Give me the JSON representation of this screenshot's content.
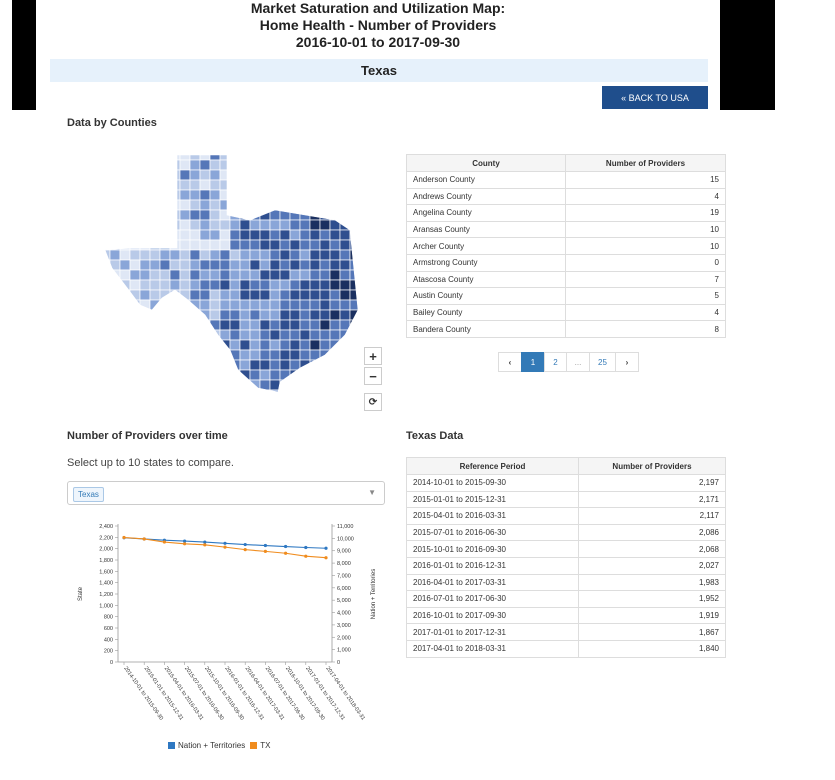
{
  "header": {
    "title_line1": "Market Saturation and Utilization Map:",
    "title_line2": "Home Health - Number of Providers",
    "title_line3": "2016-10-01 to 2017-09-30",
    "state": "Texas",
    "back_button": "« BACK TO USA"
  },
  "counties_section": {
    "title": "Data by Counties",
    "zoom_in": "+",
    "zoom_out": "−",
    "reset": "⟳",
    "table": {
      "headers": [
        "County",
        "Number of Providers"
      ],
      "rows": [
        [
          "Anderson County",
          "15"
        ],
        [
          "Andrews County",
          "4"
        ],
        [
          "Angelina County",
          "19"
        ],
        [
          "Aransas County",
          "10"
        ],
        [
          "Archer County",
          "10"
        ],
        [
          "Armstrong County",
          "0"
        ],
        [
          "Atascosa County",
          "7"
        ],
        [
          "Austin County",
          "5"
        ],
        [
          "Bailey County",
          "4"
        ],
        [
          "Bandera County",
          "8"
        ]
      ]
    },
    "pagination": {
      "prev": "‹",
      "pages": [
        "1",
        "2",
        "...",
        "25"
      ],
      "next": "›",
      "active": "1"
    }
  },
  "over_time": {
    "title": "Number of Providers over time",
    "instruction": "Select up to 10 states to compare.",
    "selected": "Texas"
  },
  "texas_data": {
    "title": "Texas Data",
    "headers": [
      "Reference Period",
      "Number of Providers"
    ],
    "rows": [
      [
        "2014-10-01 to 2015-09-30",
        "2,197"
      ],
      [
        "2015-01-01 to 2015-12-31",
        "2,171"
      ],
      [
        "2015-04-01 to 2016-03-31",
        "2,117"
      ],
      [
        "2015-07-01 to 2016-06-30",
        "2,086"
      ],
      [
        "2015-10-01 to 2016-09-30",
        "2,068"
      ],
      [
        "2016-01-01 to 2016-12-31",
        "2,027"
      ],
      [
        "2016-04-01 to 2017-03-31",
        "1,983"
      ],
      [
        "2016-07-01 to 2017-06-30",
        "1,952"
      ],
      [
        "2016-10-01 to 2017-09-30",
        "1,919"
      ],
      [
        "2017-01-01 to 2017-12-31",
        "1,867"
      ],
      [
        "2017-04-01 to 2018-03-31",
        "1,840"
      ]
    ]
  },
  "chart_data": {
    "type": "line",
    "categories": [
      "2014-10-01 to 2015-09-30",
      "2015-01-01 to 2015-12-31",
      "2015-04-01 to 2016-03-31",
      "2015-07-01 to 2016-06-30",
      "2015-10-01 to 2016-09-30",
      "2016-01-01 to 2016-12-31",
      "2016-04-01 to 2017-03-31",
      "2016-07-01 to 2017-06-30",
      "2016-10-01 to 2017-09-30",
      "2017-01-01 to 2017-12-31",
      "2017-04-01 to 2018-03-31"
    ],
    "ylabel": "State",
    "y2label": "Nation + Territories",
    "ylim": [
      0,
      2400
    ],
    "y2lim": [
      0,
      11000
    ],
    "yticks": [
      "0",
      "200",
      "400",
      "600",
      "800",
      "1,000",
      "1,200",
      "1,400",
      "1,600",
      "1,800",
      "2,000",
      "2,200",
      "2,400"
    ],
    "y2ticks": [
      "0",
      "1,000",
      "2,000",
      "3,000",
      "4,000",
      "5,000",
      "6,000",
      "7,000",
      "8,000",
      "9,000",
      "10,000",
      "11,000"
    ],
    "series": [
      {
        "name": "Nation + Territories",
        "color": "#2e78c2",
        "axis": "right",
        "values": [
          10050,
          9950,
          9850,
          9780,
          9700,
          9600,
          9500,
          9420,
          9340,
          9260,
          9200
        ]
      },
      {
        "name": "TX",
        "color": "#f08c1e",
        "axis": "left",
        "values": [
          2197,
          2171,
          2117,
          2086,
          2068,
          2027,
          1983,
          1952,
          1919,
          1867,
          1840
        ]
      }
    ]
  },
  "map": {
    "colors": [
      "#dfe7f5",
      "#b9cae8",
      "#8aa6d8",
      "#5577b8",
      "#2f4f8f",
      "#1b3060"
    ]
  }
}
